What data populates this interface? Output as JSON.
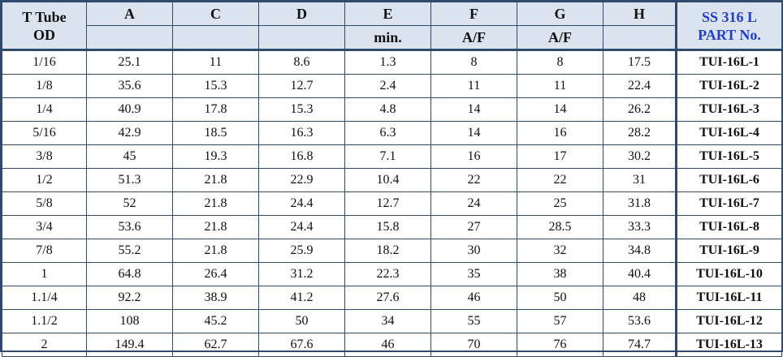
{
  "table": {
    "header": {
      "tube_od_line1": "T Tube",
      "tube_od_line2": "OD",
      "A": "A",
      "C": "C",
      "D": "D",
      "E": "E",
      "F": "F",
      "G": "G",
      "H": "H",
      "part_line1": "SS 316 L",
      "part_line2": "PART No.",
      "sub_A": "",
      "sub_C": "",
      "sub_D": "",
      "sub_E": "min.",
      "sub_F": "A/F",
      "sub_G": "A/F",
      "sub_H": ""
    },
    "rows": [
      {
        "od": "1/16",
        "A": "25.1",
        "C": "11",
        "D": "8.6",
        "E": "1.3",
        "F": "8",
        "G": "8",
        "H": "17.5",
        "part": "TUI-16L-1"
      },
      {
        "od": "1/8",
        "A": "35.6",
        "C": "15.3",
        "D": "12.7",
        "E": "2.4",
        "F": "11",
        "G": "11",
        "H": "22.4",
        "part": "TUI-16L-2"
      },
      {
        "od": "1/4",
        "A": "40.9",
        "C": "17.8",
        "D": "15.3",
        "E": "4.8",
        "F": "14",
        "G": "14",
        "H": "26.2",
        "part": "TUI-16L-3"
      },
      {
        "od": "5/16",
        "A": "42.9",
        "C": "18.5",
        "D": "16.3",
        "E": "6.3",
        "F": "14",
        "G": "16",
        "H": "28.2",
        "part": "TUI-16L-4"
      },
      {
        "od": "3/8",
        "A": "45",
        "C": "19.3",
        "D": "16.8",
        "E": "7.1",
        "F": "16",
        "G": "17",
        "H": "30.2",
        "part": "TUI-16L-5"
      },
      {
        "od": "1/2",
        "A": "51.3",
        "C": "21.8",
        "D": "22.9",
        "E": "10.4",
        "F": "22",
        "G": "22",
        "H": "31",
        "part": "TUI-16L-6"
      },
      {
        "od": "5/8",
        "A": "52",
        "C": "21.8",
        "D": "24.4",
        "E": "12.7",
        "F": "24",
        "G": "25",
        "H": "31.8",
        "part": "TUI-16L-7"
      },
      {
        "od": "3/4",
        "A": "53.6",
        "C": "21.8",
        "D": "24.4",
        "E": "15.8",
        "F": "27",
        "G": "28.5",
        "H": "33.3",
        "part": "TUI-16L-8"
      },
      {
        "od": "7/8",
        "A": "55.2",
        "C": "21.8",
        "D": "25.9",
        "E": "18.2",
        "F": "30",
        "G": "32",
        "H": "34.8",
        "part": "TUI-16L-9"
      },
      {
        "od": "1",
        "A": "64.8",
        "C": "26.4",
        "D": "31.2",
        "E": "22.3",
        "F": "35",
        "G": "38",
        "H": "40.4",
        "part": "TUI-16L-10"
      },
      {
        "od": "1.1/4",
        "A": "92.2",
        "C": "38.9",
        "D": "41.2",
        "E": "27.6",
        "F": "46",
        "G": "50",
        "H": "48",
        "part": "TUI-16L-11"
      },
      {
        "od": "1.1/2",
        "A": "108",
        "C": "45.2",
        "D": "50",
        "E": "34",
        "F": "55",
        "G": "57",
        "H": "53.6",
        "part": "TUI-16L-12"
      },
      {
        "od": "2",
        "A": "149.4",
        "C": "62.7",
        "D": "67.6",
        "E": "46",
        "F": "70",
        "G": "76",
        "H": "74.7",
        "part": "TUI-16L-13"
      }
    ]
  },
  "colors": {
    "header_background": "#dbe3ee",
    "grid_lines": "#2f4a6d",
    "part_header_text": "#1f3fd1"
  }
}
